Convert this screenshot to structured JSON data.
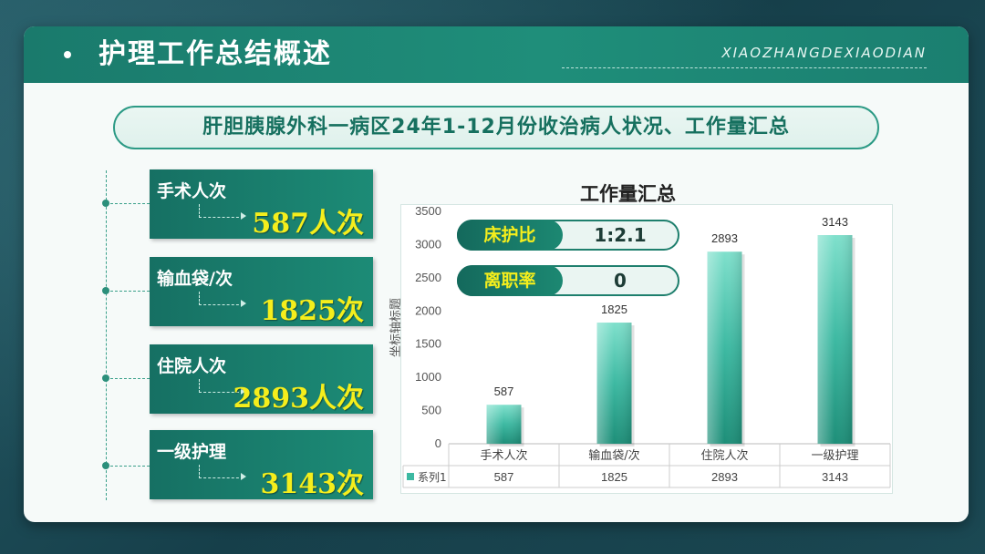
{
  "header": {
    "title": "护理工作总结概述",
    "subtitle": "XIAOZHANGDEXIAODIAN"
  },
  "banner": "肝胆胰腺外科一病区24年1-12月份收治病人状况、工作量汇总",
  "cards": [
    {
      "label": "手术人次",
      "value": "587人次"
    },
    {
      "label": "输血袋/次",
      "value": "1825次"
    },
    {
      "label": "住院人次",
      "value": "2893人次"
    },
    {
      "label": "一级护理",
      "value": "3143次"
    }
  ],
  "pills": [
    {
      "label": "床护比",
      "value": "1:2.1"
    },
    {
      "label": "离职率",
      "value": "0"
    }
  ],
  "colors": {
    "accent": "#1a7a6c",
    "highlight": "#f5ee1c",
    "bar": "#3fbfa8"
  },
  "chart_data": {
    "type": "bar",
    "title": "工作量汇总",
    "ylabel": "坐标轴标题",
    "xlabel": "",
    "categories": [
      "手术人次",
      "输血袋/次",
      "住院人次",
      "一级护理"
    ],
    "series": [
      {
        "name": "系列1",
        "values": [
          587,
          1825,
          2893,
          3143
        ]
      }
    ],
    "ylim": [
      0,
      3500
    ],
    "yticks": [
      0,
      500,
      1000,
      1500,
      2000,
      2500,
      3000,
      3500
    ],
    "data_table": true,
    "grid": false
  }
}
